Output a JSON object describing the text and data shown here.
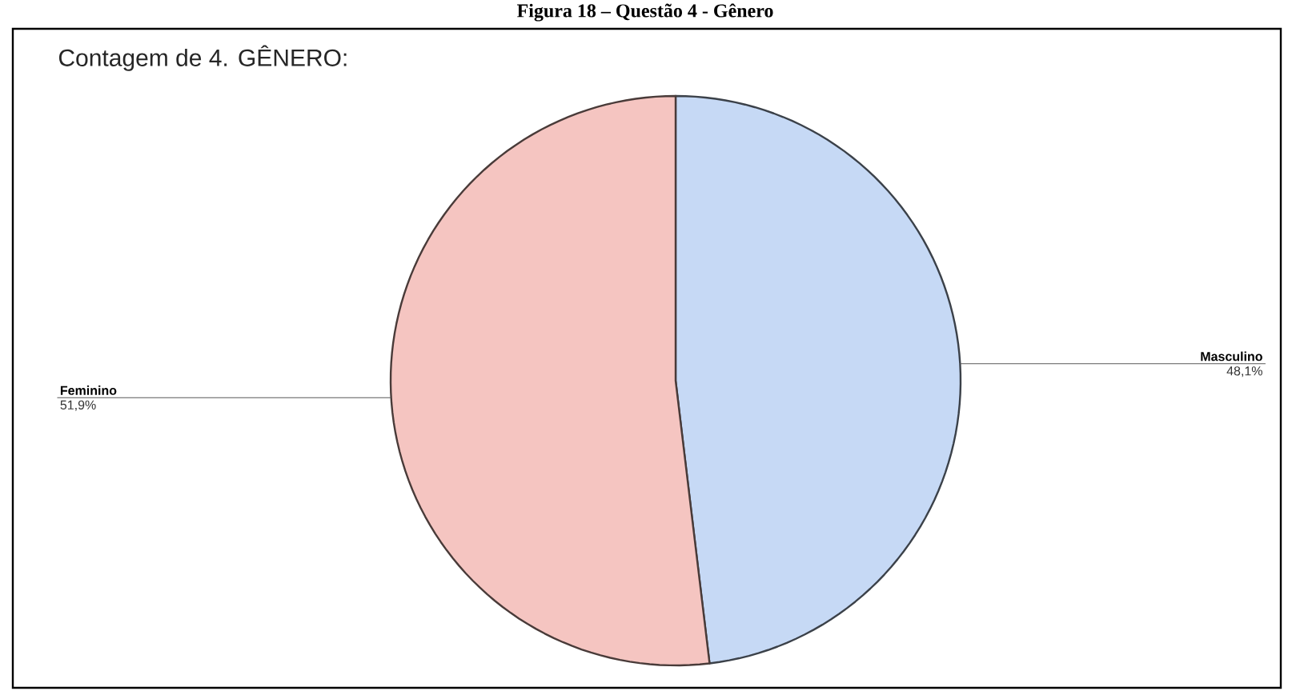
{
  "chart_data": {
    "type": "pie",
    "title": "Figura 18 – Questão 4 - Gênero",
    "subtitle": "Contagem de 4. GÊNERO:",
    "categories": [
      "Masculino",
      "Feminino"
    ],
    "values": [
      48.1,
      51.9
    ],
    "value_labels": [
      "48,1%",
      "51,9%"
    ],
    "colors": [
      "#c6d9f5",
      "#f5c5c1"
    ]
  }
}
